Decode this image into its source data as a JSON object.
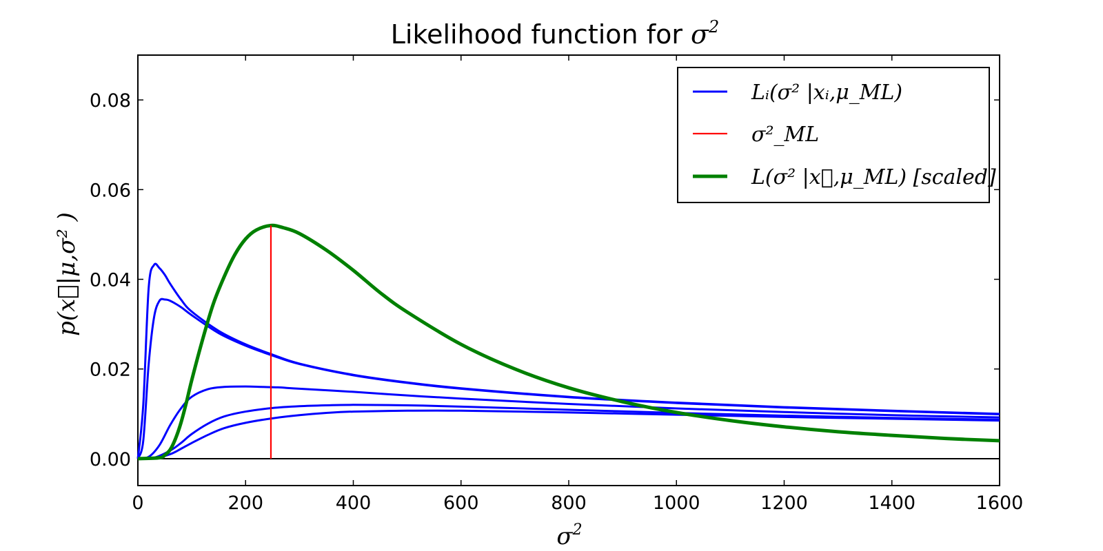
{
  "chart_data": {
    "type": "line",
    "title": "Likelihood function for σ²",
    "title_text": "Likelihood function for ",
    "title_math": "σ",
    "title_sup": "2",
    "xlabel": "σ²",
    "xlabel_math": "σ",
    "xlabel_sup": "2",
    "ylabel": "p(x⃗|μ,σ² )",
    "xlim": [
      0,
      1600
    ],
    "ylim": [
      -0.006,
      0.09
    ],
    "xticks": [
      0,
      200,
      400,
      600,
      800,
      1000,
      1200,
      1400,
      1600
    ],
    "xtick_labels": [
      "0",
      "200",
      "400",
      "600",
      "800",
      "1000",
      "1200",
      "1400",
      "1600"
    ],
    "yticks": [
      0.0,
      0.02,
      0.04,
      0.06,
      0.08
    ],
    "ytick_labels": [
      "0.00",
      "0.02",
      "0.04",
      "0.06",
      "0.08"
    ],
    "grid": false,
    "legend_position": "top-right",
    "legend": [
      {
        "label": "Lᵢ(σ² |xᵢ,μ_ML)",
        "color": "#0000ff",
        "style": "thin"
      },
      {
        "label": "σ²_ML",
        "color": "#ff0000",
        "style": "thin"
      },
      {
        "label": "L(σ² |x⃗,μ_ML) [scaled]",
        "color": "#008000",
        "style": "thick"
      }
    ],
    "colors": {
      "individual": "#0000ff",
      "ml_line": "#ff0000",
      "joint": "#008000",
      "zero_line": "#000000"
    },
    "series": [
      {
        "x": [
          0,
          10,
          20,
          30,
          40,
          50,
          60,
          80,
          100,
          150,
          200,
          250,
          300,
          400,
          500,
          600,
          800,
          1000,
          1200,
          1400,
          1600
        ],
        "y": [
          0,
          0.012,
          0.038,
          0.0432,
          0.0425,
          0.041,
          0.039,
          0.0355,
          0.0328,
          0.0285,
          0.0255,
          0.0232,
          0.0212,
          0.0187,
          0.017,
          0.0157,
          0.0138,
          0.0125,
          0.0115,
          0.0107,
          0.01
        ]
      },
      {
        "x": [
          0,
          10,
          20,
          30,
          40,
          50,
          60,
          80,
          100,
          150,
          200,
          250,
          300,
          400,
          500,
          600,
          800,
          1000,
          1200,
          1400,
          1600
        ],
        "y": [
          0,
          0.004,
          0.021,
          0.0315,
          0.0352,
          0.0355,
          0.0352,
          0.0338,
          0.032,
          0.028,
          0.0252,
          0.023,
          0.0211,
          0.0186,
          0.0169,
          0.0156,
          0.0137,
          0.0124,
          0.0114,
          0.0106,
          0.0099
        ]
      },
      {
        "x": [
          0,
          20,
          40,
          60,
          80,
          100,
          130,
          160,
          200,
          230,
          260,
          300,
          400,
          500,
          600,
          800,
          1000,
          1200,
          1400,
          1600
        ],
        "y": [
          0,
          0.0004,
          0.003,
          0.0075,
          0.0112,
          0.0138,
          0.0155,
          0.016,
          0.0161,
          0.016,
          0.0159,
          0.0156,
          0.0149,
          0.0141,
          0.0134,
          0.0122,
          0.0112,
          0.0104,
          0.0097,
          0.0092
        ]
      },
      {
        "x": [
          0,
          30,
          60,
          80,
          100,
          130,
          160,
          200,
          250,
          300,
          350,
          400,
          500,
          600,
          800,
          1000,
          1200,
          1400,
          1600
        ],
        "y": [
          0,
          0.0002,
          0.0018,
          0.0035,
          0.0055,
          0.0078,
          0.0094,
          0.0105,
          0.0113,
          0.0117,
          0.0119,
          0.012,
          0.0119,
          0.0116,
          0.0109,
          0.0102,
          0.0096,
          0.0091,
          0.0087
        ]
      },
      {
        "x": [
          0,
          30,
          60,
          80,
          100,
          130,
          160,
          200,
          250,
          300,
          350,
          400,
          500,
          600,
          800,
          1000,
          1200,
          1400,
          1600
        ],
        "y": [
          0,
          0.0001,
          0.001,
          0.0022,
          0.0035,
          0.0053,
          0.0068,
          0.008,
          0.009,
          0.0097,
          0.0102,
          0.0105,
          0.0107,
          0.0107,
          0.0103,
          0.0098,
          0.0093,
          0.0089,
          0.0085
        ]
      },
      {
        "x": [
          0,
          40,
          50,
          60,
          70,
          80,
          90,
          100,
          120,
          140,
          160,
          180,
          200,
          220,
          247,
          270,
          300,
          350,
          400,
          450,
          500,
          600,
          700,
          800,
          900,
          1000,
          1100,
          1200,
          1300,
          1400,
          1500,
          1600
        ],
        "y": [
          0,
          0.0002,
          0.0008,
          0.002,
          0.0045,
          0.008,
          0.0125,
          0.0175,
          0.0265,
          0.0345,
          0.0405,
          0.0455,
          0.049,
          0.051,
          0.052,
          0.0515,
          0.0502,
          0.0465,
          0.042,
          0.037,
          0.0327,
          0.0255,
          0.02,
          0.0158,
          0.0127,
          0.0103,
          0.0085,
          0.0071,
          0.006,
          0.0052,
          0.0045,
          0.004
        ]
      }
    ],
    "ml_value": 247,
    "ml_peak_value": 0.052
  }
}
